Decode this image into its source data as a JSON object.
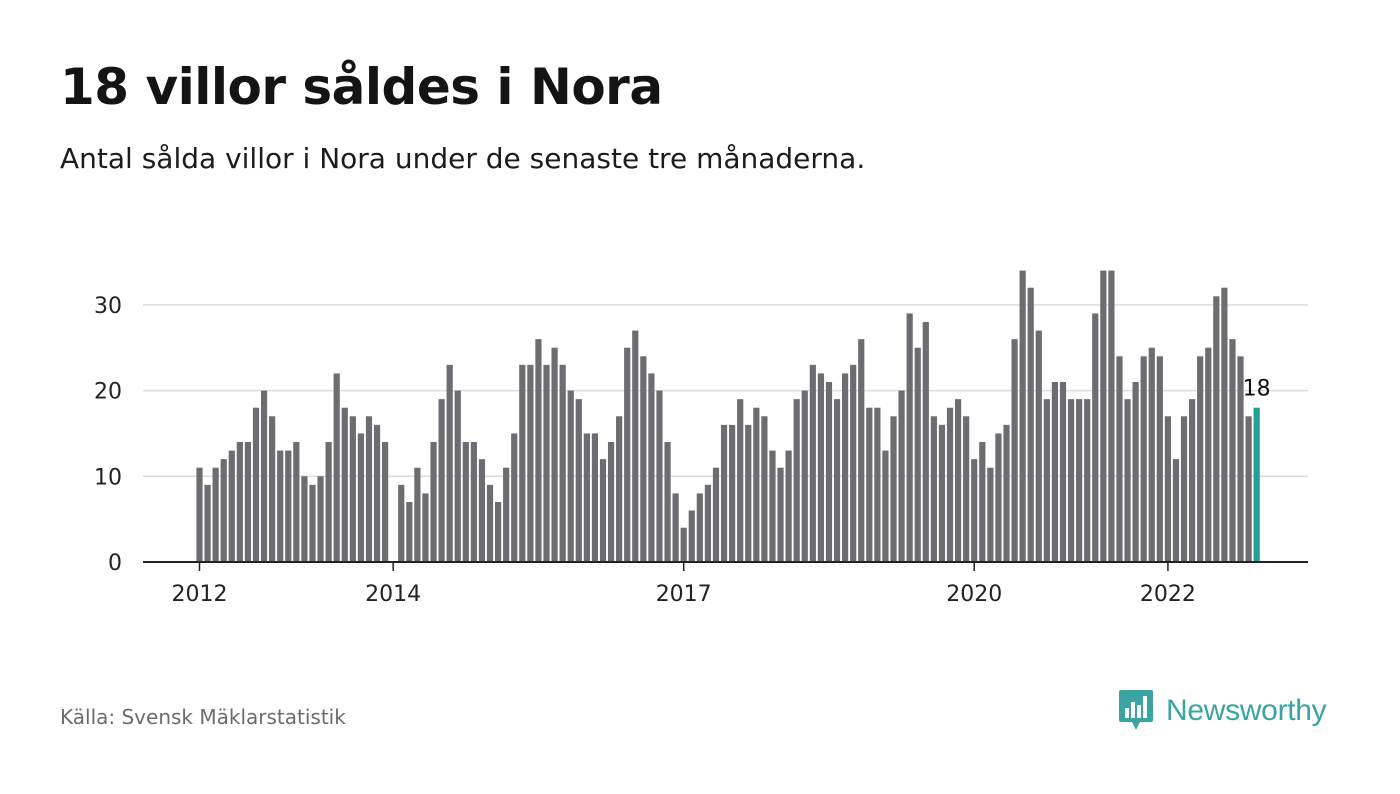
{
  "title": "18 villor såldes i Nora",
  "subtitle": "Antal sålda villor i Nora under de senaste tre månaderna.",
  "source": "Källa: Svensk Mäklarstatistik",
  "brand": "Newsworthy",
  "colors": {
    "bar": "#6d6d71",
    "highlight": "#1fa195",
    "grid": "#dcdcdc",
    "axis": "#222222",
    "brand": "#3aa5a0"
  },
  "chart_data": {
    "type": "bar",
    "title": "18 villor såldes i Nora",
    "xlabel": "",
    "ylabel": "",
    "ylim": [
      0,
      35
    ],
    "yticks": [
      0,
      10,
      20,
      30
    ],
    "grid": true,
    "xticks": [
      {
        "label": "2012",
        "index": 0
      },
      {
        "label": "2014",
        "index": 24
      },
      {
        "label": "2017",
        "index": 60
      },
      {
        "label": "2020",
        "index": 96
      },
      {
        "label": "2022",
        "index": 120
      }
    ],
    "values": [
      11,
      9,
      11,
      12,
      13,
      14,
      14,
      18,
      20,
      17,
      13,
      13,
      14,
      10,
      9,
      10,
      14,
      22,
      18,
      17,
      15,
      17,
      16,
      14,
      0,
      9,
      7,
      11,
      8,
      14,
      19,
      23,
      20,
      14,
      14,
      12,
      9,
      7,
      11,
      15,
      23,
      23,
      26,
      23,
      25,
      23,
      20,
      19,
      15,
      15,
      12,
      14,
      17,
      25,
      27,
      24,
      22,
      20,
      14,
      8,
      4,
      6,
      8,
      9,
      11,
      16,
      16,
      19,
      16,
      18,
      17,
      13,
      11,
      13,
      19,
      20,
      23,
      22,
      21,
      19,
      22,
      23,
      26,
      18,
      18,
      13,
      17,
      20,
      29,
      25,
      28,
      17,
      16,
      18,
      19,
      17,
      12,
      14,
      11,
      15,
      16,
      26,
      34,
      32,
      27,
      19,
      21,
      21,
      19,
      19,
      19,
      29,
      34,
      34,
      24,
      19,
      21,
      24,
      25,
      24,
      17,
      12,
      17,
      19,
      24,
      25,
      31,
      32,
      26,
      24,
      17,
      18
    ],
    "highlight_index": 131,
    "highlight_label": "18"
  }
}
